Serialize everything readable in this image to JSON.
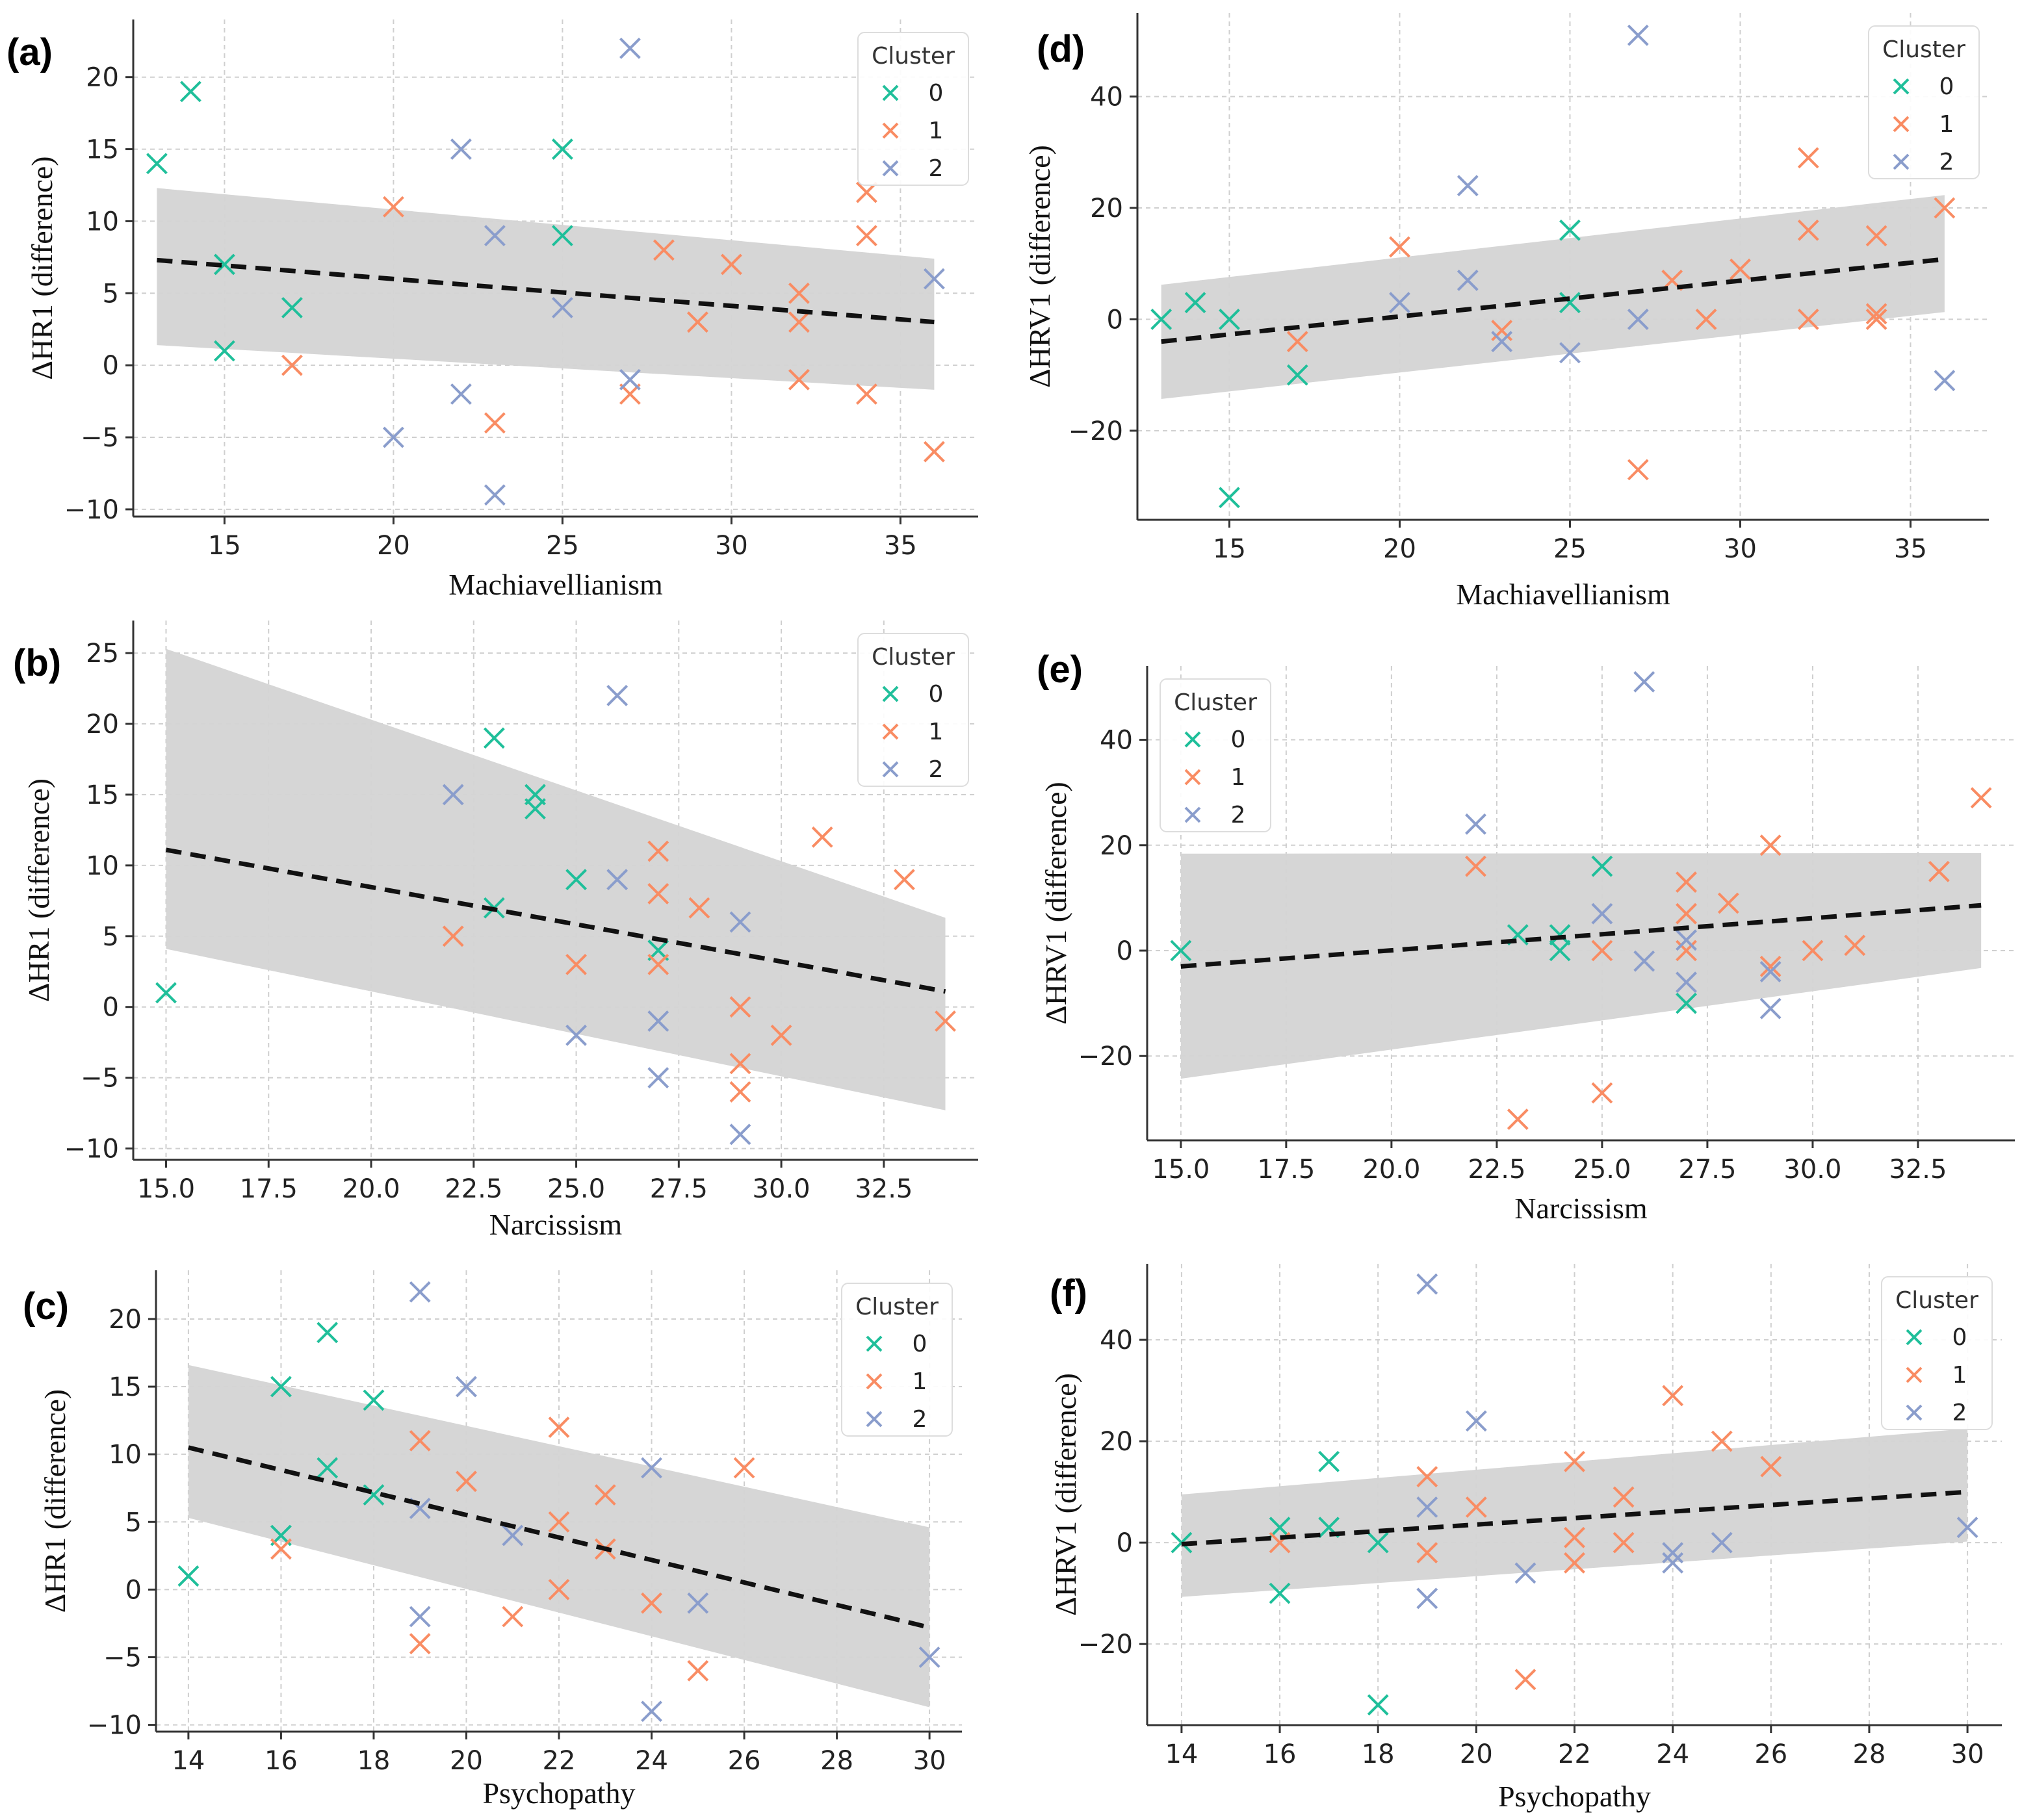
{
  "figure": {
    "colors": {
      "cluster_0": "#1fbf9a",
      "cluster_1": "#f98c63",
      "cluster_2": "#8a9dcc",
      "band": "#d4d4d4",
      "fit_line": "#111111",
      "grid": "#cfcfcf"
    },
    "legend_title": "Cluster",
    "legend_labels": [
      "0",
      "1",
      "2"
    ]
  },
  "chart_data": [
    {
      "id": "a",
      "panel_label": "(a)",
      "type": "scatter",
      "xlabel": "Machiavellianism",
      "ylabel": "ΔHR1 (difference)",
      "xlim": [
        12.3,
        37.3
      ],
      "ylim": [
        -10.5,
        24
      ],
      "xticks": [
        15,
        20,
        25,
        30,
        35
      ],
      "xtick_labels": [
        "15",
        "20",
        "25",
        "30",
        "35"
      ],
      "yticks": [
        -10,
        -5,
        0,
        5,
        10,
        15,
        20
      ],
      "ytick_labels": [
        "−10",
        "−5",
        "0",
        "5",
        "10",
        "15",
        "20"
      ],
      "legend_position": "top-right",
      "fit": {
        "x": [
          13,
          36
        ],
        "y": [
          7.3,
          3.0
        ],
        "band_upper": [
          12.3,
          7.4
        ],
        "band_lower": [
          1.4,
          -1.7
        ]
      },
      "series": [
        {
          "name": "0",
          "points": [
            [
              13,
              14
            ],
            [
              14,
              19
            ],
            [
              15,
              7
            ],
            [
              15,
              1
            ],
            [
              17,
              4
            ],
            [
              25,
              15
            ],
            [
              25,
              9
            ]
          ]
        },
        {
          "name": "1",
          "points": [
            [
              17,
              0
            ],
            [
              20,
              11
            ],
            [
              23,
              -4
            ],
            [
              27,
              -2
            ],
            [
              28,
              8
            ],
            [
              29,
              3
            ],
            [
              30,
              7
            ],
            [
              32,
              5
            ],
            [
              32,
              3
            ],
            [
              32,
              -1
            ],
            [
              34,
              12
            ],
            [
              34,
              9
            ],
            [
              34,
              -2
            ],
            [
              36,
              -6
            ]
          ]
        },
        {
          "name": "2",
          "points": [
            [
              20,
              -5
            ],
            [
              22,
              15
            ],
            [
              22,
              -2
            ],
            [
              23,
              9
            ],
            [
              23,
              -9
            ],
            [
              25,
              4
            ],
            [
              27,
              22
            ],
            [
              27,
              -1
            ],
            [
              36,
              6
            ]
          ]
        }
      ]
    },
    {
      "id": "b",
      "panel_label": "(b)",
      "type": "scatter",
      "xlabel": "Narcissism",
      "ylabel": "ΔHR1 (difference)",
      "xlim": [
        14.2,
        34.8
      ],
      "ylim": [
        -10.8,
        27.3
      ],
      "xticks": [
        15,
        17.5,
        20,
        22.5,
        25,
        27.5,
        30,
        32.5
      ],
      "xtick_labels": [
        "15.0",
        "17.5",
        "20.0",
        "22.5",
        "25.0",
        "27.5",
        "30.0",
        "32.5"
      ],
      "yticks": [
        -10,
        -5,
        0,
        5,
        10,
        15,
        20,
        25
      ],
      "ytick_labels": [
        "−10",
        "−5",
        "0",
        "5",
        "10",
        "15",
        "20",
        "25"
      ],
      "legend_position": "top-right",
      "fit": {
        "x": [
          15,
          34
        ],
        "y": [
          11.1,
          1.1
        ],
        "band_upper": [
          25.3,
          6.3
        ],
        "band_lower": [
          4.1,
          -7.3
        ]
      },
      "series": [
        {
          "name": "0",
          "points": [
            [
              15,
              1
            ],
            [
              23,
              19
            ],
            [
              23,
              7
            ],
            [
              24,
              15
            ],
            [
              24,
              14
            ],
            [
              25,
              9
            ],
            [
              27,
              4
            ]
          ]
        },
        {
          "name": "1",
          "points": [
            [
              22,
              5
            ],
            [
              25,
              3
            ],
            [
              27,
              11
            ],
            [
              27,
              8
            ],
            [
              27,
              3
            ],
            [
              28,
              7
            ],
            [
              29,
              0
            ],
            [
              29,
              -4
            ],
            [
              29,
              -6
            ],
            [
              30,
              -2
            ],
            [
              31,
              12
            ],
            [
              33,
              9
            ],
            [
              34,
              -1
            ]
          ]
        },
        {
          "name": "2",
          "points": [
            [
              22,
              15
            ],
            [
              25,
              -2
            ],
            [
              26,
              22
            ],
            [
              26,
              9
            ],
            [
              27,
              -1
            ],
            [
              27,
              -5
            ],
            [
              29,
              6
            ],
            [
              29,
              -9
            ]
          ]
        }
      ]
    },
    {
      "id": "c",
      "panel_label": "(c)",
      "type": "scatter",
      "xlabel": "Psychopathy",
      "ylabel": "ΔHR1 (difference)",
      "xlim": [
        13.3,
        30.7
      ],
      "ylim": [
        -10.5,
        23.6
      ],
      "xticks": [
        14,
        16,
        18,
        20,
        22,
        24,
        26,
        28,
        30
      ],
      "xtick_labels": [
        "14",
        "16",
        "18",
        "20",
        "22",
        "24",
        "26",
        "28",
        "30"
      ],
      "yticks": [
        -10,
        -5,
        0,
        5,
        10,
        15,
        20
      ],
      "ytick_labels": [
        "−10",
        "−5",
        "0",
        "5",
        "10",
        "15",
        "20"
      ],
      "legend_position": "top-right",
      "fit": {
        "x": [
          14,
          30
        ],
        "y": [
          10.5,
          -2.8
        ],
        "band_upper": [
          16.6,
          4.6
        ],
        "band_lower": [
          5.3,
          -8.7
        ]
      },
      "series": [
        {
          "name": "0",
          "points": [
            [
              14,
              1
            ],
            [
              16,
              15
            ],
            [
              16,
              4
            ],
            [
              17,
              19
            ],
            [
              17,
              9
            ],
            [
              18,
              14
            ],
            [
              18,
              7
            ]
          ]
        },
        {
          "name": "1",
          "points": [
            [
              16,
              3
            ],
            [
              19,
              11
            ],
            [
              19,
              -4
            ],
            [
              20,
              8
            ],
            [
              21,
              -2
            ],
            [
              22,
              12
            ],
            [
              22,
              5
            ],
            [
              22,
              0
            ],
            [
              23,
              7
            ],
            [
              23,
              3
            ],
            [
              24,
              -1
            ],
            [
              25,
              -6
            ],
            [
              26,
              9
            ]
          ]
        },
        {
          "name": "2",
          "points": [
            [
              19,
              22
            ],
            [
              19,
              6
            ],
            [
              19,
              -2
            ],
            [
              20,
              15
            ],
            [
              21,
              4
            ],
            [
              24,
              9
            ],
            [
              24,
              -9
            ],
            [
              25,
              -1
            ],
            [
              30,
              -5
            ]
          ]
        }
      ]
    },
    {
      "id": "d",
      "panel_label": "(d)",
      "type": "scatter",
      "xlabel": "Machiavellianism",
      "ylabel": "ΔHRV1 (difference)",
      "xlim": [
        12.3,
        37.3
      ],
      "ylim": [
        -36,
        55
      ],
      "xticks": [
        15,
        20,
        25,
        30,
        35
      ],
      "xtick_labels": [
        "15",
        "20",
        "25",
        "30",
        "35"
      ],
      "yticks": [
        -20,
        0,
        20,
        40
      ],
      "ytick_labels": [
        "−20",
        "0",
        "20",
        "40"
      ],
      "legend_position": "top-right",
      "fit": {
        "x": [
          13,
          36
        ],
        "y": [
          -4.0,
          10.8
        ],
        "band_upper": [
          6.2,
          22.3
        ],
        "band_lower": [
          -14.3,
          1.3
        ]
      },
      "series": [
        {
          "name": "0",
          "points": [
            [
              13,
              0
            ],
            [
              14,
              3
            ],
            [
              15,
              0
            ],
            [
              15,
              -32
            ],
            [
              17,
              -10
            ],
            [
              25,
              16
            ],
            [
              25,
              3
            ]
          ]
        },
        {
          "name": "1",
          "points": [
            [
              17,
              -4
            ],
            [
              20,
              13
            ],
            [
              23,
              -2
            ],
            [
              27,
              -27
            ],
            [
              28,
              7
            ],
            [
              29,
              0
            ],
            [
              30,
              9
            ],
            [
              32,
              29
            ],
            [
              32,
              16
            ],
            [
              32,
              0
            ],
            [
              34,
              15
            ],
            [
              34,
              1
            ],
            [
              34,
              0
            ],
            [
              36,
              20
            ]
          ]
        },
        {
          "name": "2",
          "points": [
            [
              20,
              3
            ],
            [
              22,
              24
            ],
            [
              22,
              7
            ],
            [
              23,
              -4
            ],
            [
              25,
              -6
            ],
            [
              27,
              51
            ],
            [
              27,
              0
            ],
            [
              36,
              -11
            ]
          ]
        }
      ]
    },
    {
      "id": "e",
      "panel_label": "(e)",
      "type": "scatter",
      "xlabel": "Narcissism",
      "ylabel": "ΔHRV1 (difference)",
      "xlim": [
        14.2,
        34.8
      ],
      "ylim": [
        -36,
        54
      ],
      "xticks": [
        15,
        17.5,
        20,
        22.5,
        25,
        27.5,
        30,
        32.5
      ],
      "xtick_labels": [
        "15.0",
        "17.5",
        "20.0",
        "22.5",
        "25.0",
        "27.5",
        "30.0",
        "32.5"
      ],
      "yticks": [
        -20,
        0,
        20,
        40
      ],
      "ytick_labels": [
        "−20",
        "0",
        "20",
        "40"
      ],
      "legend_position": "top-left",
      "fit": {
        "x": [
          15,
          34
        ],
        "y": [
          -3.0,
          8.6
        ],
        "band_upper": [
          18.4,
          18.5
        ],
        "band_lower": [
          -24.3,
          -3.3
        ]
      },
      "series": [
        {
          "name": "0",
          "points": [
            [
              15,
              0
            ],
            [
              23,
              3
            ],
            [
              24,
              3
            ],
            [
              24,
              0
            ],
            [
              25,
              16
            ],
            [
              27,
              -10
            ]
          ]
        },
        {
          "name": "1",
          "points": [
            [
              22,
              16
            ],
            [
              23,
              -32
            ],
            [
              25,
              0
            ],
            [
              25,
              -27
            ],
            [
              27,
              13
            ],
            [
              27,
              7
            ],
            [
              27,
              0
            ],
            [
              28,
              9
            ],
            [
              29,
              20
            ],
            [
              29,
              -3
            ],
            [
              30,
              0
            ],
            [
              31,
              1
            ],
            [
              33,
              15
            ],
            [
              34,
              29
            ]
          ]
        },
        {
          "name": "2",
          "points": [
            [
              22,
              24
            ],
            [
              25,
              7
            ],
            [
              26,
              51
            ],
            [
              26,
              -2
            ],
            [
              27,
              2
            ],
            [
              27,
              -6
            ],
            [
              29,
              -4
            ],
            [
              29,
              -11
            ]
          ]
        }
      ]
    },
    {
      "id": "f",
      "panel_label": "(f)",
      "type": "scatter",
      "xlabel": "Psychopathy",
      "ylabel": "ΔHRV1 (difference)",
      "xlim": [
        13.3,
        30.7
      ],
      "ylim": [
        -36,
        55
      ],
      "xticks": [
        14,
        16,
        18,
        20,
        22,
        24,
        26,
        28,
        30
      ],
      "xtick_labels": [
        "14",
        "16",
        "18",
        "20",
        "22",
        "24",
        "26",
        "28",
        "30"
      ],
      "yticks": [
        -20,
        0,
        20,
        40
      ],
      "ytick_labels": [
        "−20",
        "0",
        "20",
        "40"
      ],
      "legend_position": "top-right",
      "fit": {
        "x": [
          14,
          30
        ],
        "y": [
          -0.3,
          10.0
        ],
        "band_upper": [
          9.5,
          22.5
        ],
        "band_lower": [
          -10.7,
          0.2
        ]
      },
      "series": [
        {
          "name": "0",
          "points": [
            [
              14,
              0
            ],
            [
              16,
              3
            ],
            [
              16,
              -10
            ],
            [
              17,
              16
            ],
            [
              17,
              3
            ],
            [
              18,
              0
            ],
            [
              18,
              -32
            ]
          ]
        },
        {
          "name": "1",
          "points": [
            [
              16,
              0
            ],
            [
              19,
              13
            ],
            [
              19,
              -2
            ],
            [
              20,
              7
            ],
            [
              21,
              -27
            ],
            [
              22,
              16
            ],
            [
              22,
              1
            ],
            [
              22,
              -4
            ],
            [
              23,
              9
            ],
            [
              23,
              0
            ],
            [
              24,
              29
            ],
            [
              25,
              20
            ],
            [
              26,
              15
            ]
          ]
        },
        {
          "name": "2",
          "points": [
            [
              19,
              51
            ],
            [
              19,
              7
            ],
            [
              19,
              -11
            ],
            [
              20,
              24
            ],
            [
              21,
              -6
            ],
            [
              24,
              -2
            ],
            [
              24,
              -4
            ],
            [
              25,
              0
            ],
            [
              30,
              3
            ]
          ]
        }
      ]
    }
  ]
}
